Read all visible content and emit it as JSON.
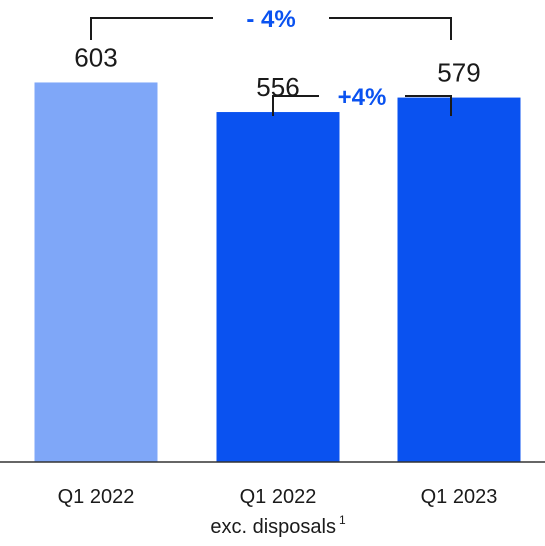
{
  "chart_data": {
    "type": "bar",
    "categories": [
      {
        "line1": "Q1 2022",
        "line2": "",
        "sup": ""
      },
      {
        "line1": "Q1 2022",
        "line2": "exc. disposals",
        "sup": "1"
      },
      {
        "line1": "Q1 2023",
        "line2": "",
        "sup": ""
      }
    ],
    "values": [
      603,
      556,
      579
    ],
    "value_labels": [
      "603",
      "556",
      "579"
    ],
    "bar_colors": [
      "#7fa7f8",
      "#0a52f0",
      "#0a52f0"
    ],
    "title": "",
    "xlabel": "",
    "ylabel": "",
    "ylim": [
      0,
      680
    ],
    "grid": false,
    "legend": "none",
    "annotations": [
      {
        "label": "- 4%",
        "from_index": 0,
        "to_index": 2,
        "level": "upper",
        "color": "#0a52f0"
      },
      {
        "label": "+4%",
        "from_index": 1,
        "to_index": 2,
        "level": "lower",
        "color": "#0a52f0"
      }
    ]
  }
}
